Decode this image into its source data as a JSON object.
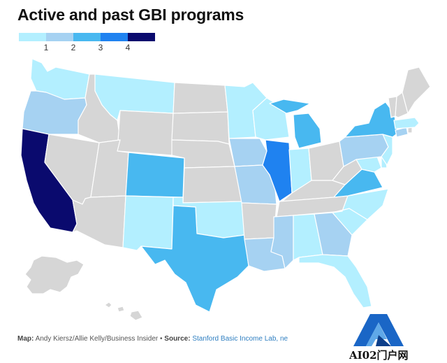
{
  "title": "Active and past GBI programs",
  "legend": {
    "items": [
      {
        "label": "",
        "color": "#b3efff"
      },
      {
        "label": "1",
        "color": "#a6d2f2"
      },
      {
        "label": "2",
        "color": "#48b8f0"
      },
      {
        "label": "3",
        "color": "#1f82f0"
      },
      {
        "label": "4",
        "color": "#0a0a6e"
      }
    ]
  },
  "colors": {
    "none": "#d6d6d6",
    "level1": "#b3efff",
    "level2": "#a6d2f2",
    "level3": "#48b8f0",
    "level4": "#1f82f0",
    "level5": "#0a0a6e",
    "border": "#ffffff"
  },
  "footer": {
    "map_label": "Map:",
    "map_credit": "Andy Kiersz/Allie Kelly/Business Insider",
    "bullet": "•",
    "source_label": "Source:",
    "source_text": "Stanford Basic Income Lab, ne"
  },
  "watermark": {
    "text": "AI02门户网"
  }
}
